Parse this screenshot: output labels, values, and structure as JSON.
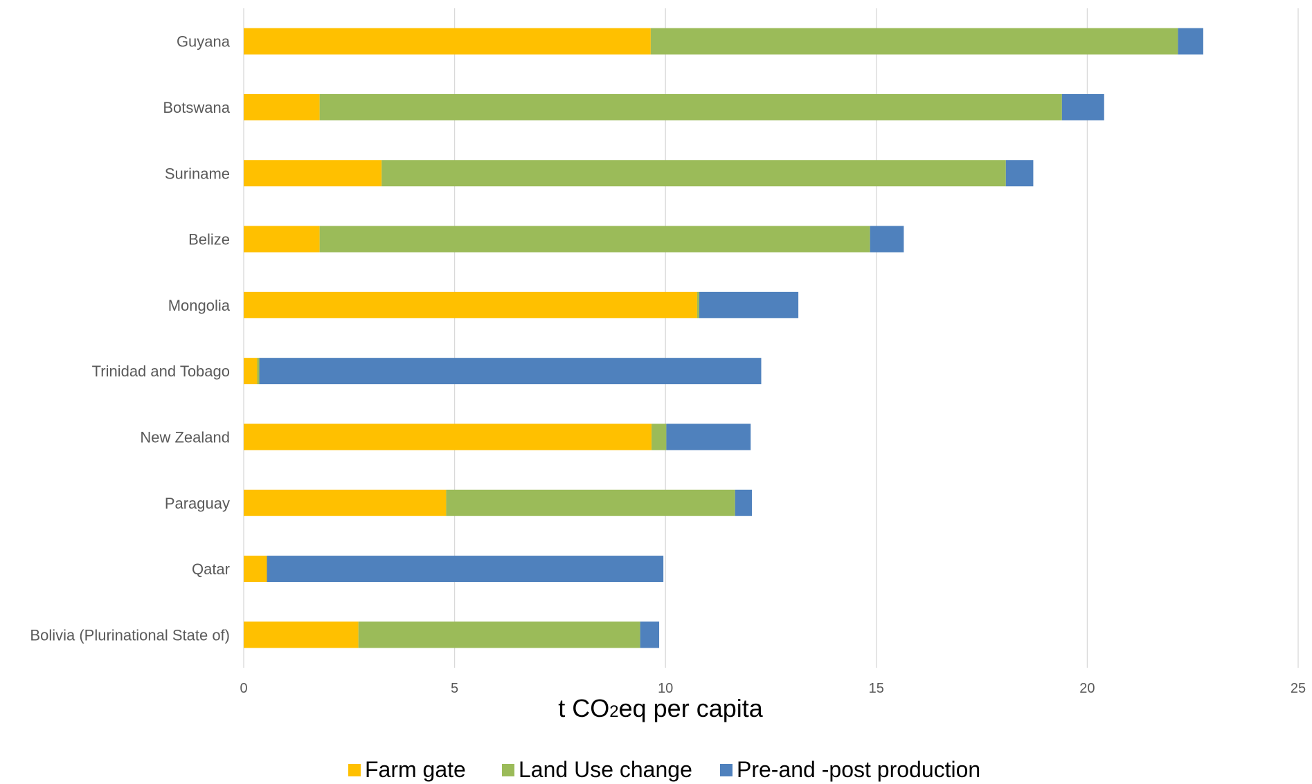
{
  "chart_data": {
    "type": "bar",
    "orientation": "horizontal",
    "stacked": true,
    "categories": [
      "Guyana",
      "Botswana",
      "Suriname",
      "Belize",
      "Mongolia",
      "Trinidad and Tobago",
      "New Zealand",
      "Paraguay",
      "Qatar",
      "Bolivia (Plurinational State of)"
    ],
    "series": [
      {
        "name": "Farm gate",
        "color": "#FFC000",
        "values": [
          9.65,
          1.8,
          3.27,
          1.8,
          10.75,
          0.32,
          9.67,
          4.8,
          0.55,
          2.72
        ]
      },
      {
        "name": "Land Use change",
        "color": "#9BBB59",
        "values": [
          12.5,
          17.6,
          14.8,
          13.05,
          0.05,
          0.05,
          0.35,
          6.85,
          0.0,
          6.68
        ]
      },
      {
        "name": "Pre-and -post production",
        "color": "#4F81BD",
        "values": [
          0.6,
          1.0,
          0.65,
          0.8,
          2.35,
          11.9,
          2.0,
          0.4,
          9.4,
          0.45
        ]
      }
    ],
    "xlabel": {
      "prefix": "t CO",
      "subscript": "2",
      "suffix": "eq per capita"
    },
    "xlim": [
      0,
      25
    ],
    "xticks": [
      0,
      5,
      10,
      15,
      20,
      25
    ],
    "grid": "vertical",
    "legend_position": "bottom"
  }
}
